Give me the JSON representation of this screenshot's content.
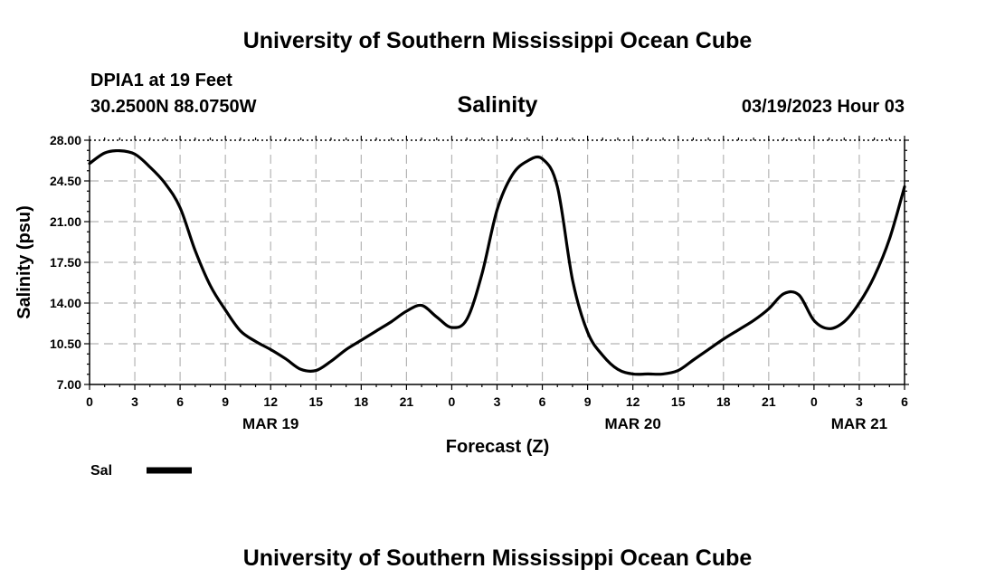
{
  "header": {
    "title": "University of Southern Mississippi Ocean Cube",
    "station": "DPIA1 at 19 Feet",
    "coords": "30.2500N  88.0750W",
    "chart_title": "Salinity",
    "timestamp": "03/19/2023 Hour 03",
    "footer_title": "University of Southern Mississippi Ocean Cube"
  },
  "chart_data": {
    "type": "line",
    "title": "Salinity",
    "xlabel": "Forecast (Z)",
    "ylabel": "Salinity (psu)",
    "xlim": [
      0,
      54
    ],
    "ylim": [
      7.0,
      28.0
    ],
    "y_ticks": [
      "7.00",
      "10.50",
      "14.00",
      "17.50",
      "21.00",
      "24.50",
      "28.00"
    ],
    "y_tick_values": [
      7.0,
      10.5,
      14.0,
      17.5,
      21.0,
      24.5,
      28.0
    ],
    "x_tick_values": [
      0,
      3,
      6,
      9,
      12,
      15,
      18,
      21,
      24,
      27,
      30,
      33,
      36,
      39,
      42,
      45,
      48,
      51,
      54
    ],
    "x_tick_labels": [
      "0",
      "3",
      "6",
      "9",
      "12",
      "15",
      "18",
      "21",
      "0",
      "3",
      "6",
      "9",
      "12",
      "15",
      "18",
      "21",
      "0",
      "3",
      "6"
    ],
    "date_labels": [
      {
        "x": 12,
        "label": "MAR 19"
      },
      {
        "x": 36,
        "label": "MAR 20"
      },
      {
        "x": 51,
        "label": "MAR 21"
      }
    ],
    "grid": true,
    "series": [
      {
        "name": "Sal",
        "color": "#000000",
        "x": [
          0,
          1,
          2,
          3,
          4,
          5,
          6,
          7,
          8,
          9,
          10,
          11,
          12,
          13,
          14,
          15,
          16,
          17,
          18,
          19,
          20,
          21,
          22,
          23,
          24,
          25,
          26,
          27,
          28,
          29,
          30,
          31,
          32,
          33,
          34,
          35,
          36,
          37,
          38,
          39,
          40,
          41,
          42,
          43,
          44,
          45,
          46,
          47,
          48,
          49,
          50,
          51,
          52,
          53,
          54
        ],
        "values": [
          26.0,
          26.9,
          27.1,
          26.8,
          25.7,
          24.3,
          22.2,
          18.5,
          15.5,
          13.4,
          11.6,
          10.7,
          10.0,
          9.2,
          8.3,
          8.2,
          9.0,
          10.0,
          10.8,
          11.6,
          12.4,
          13.3,
          13.8,
          12.8,
          11.9,
          12.6,
          16.5,
          22.0,
          25.0,
          26.2,
          26.4,
          24.0,
          16.0,
          11.5,
          9.5,
          8.3,
          7.9,
          7.9,
          7.9,
          8.2,
          9.1,
          10.0,
          10.9,
          11.7,
          12.5,
          13.5,
          14.8,
          14.7,
          12.5,
          11.8,
          12.4,
          14.0,
          16.3,
          19.5,
          24.0
        ]
      }
    ]
  },
  "legend": {
    "label": "Sal"
  }
}
